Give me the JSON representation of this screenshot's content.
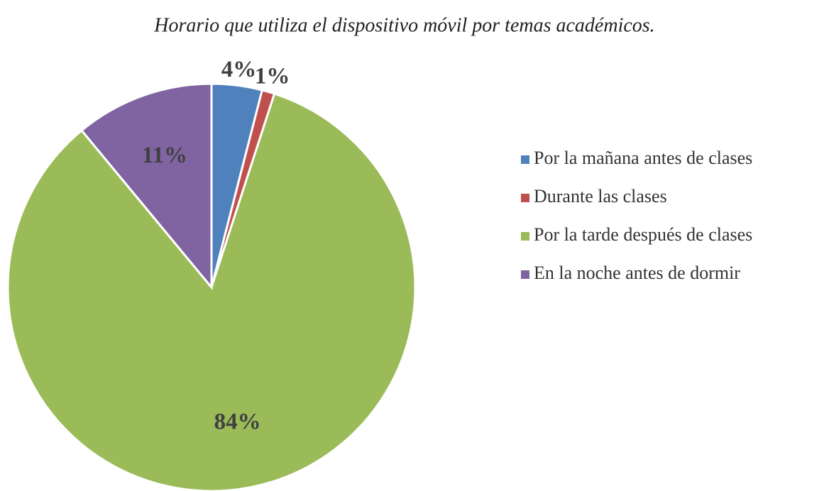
{
  "chart_data": {
    "type": "pie",
    "title": "Horario que utiliza el dispositivo móvil por temas académicos.",
    "categories": [
      "Por la mañana antes de clases",
      "Durante las clases",
      "Por la tarde después de clases",
      "En la noche antes de dormir"
    ],
    "values": [
      4,
      1,
      84,
      11
    ],
    "value_labels": [
      "4%",
      "1%",
      "84%",
      "11%"
    ],
    "colors": [
      "#4f81bd",
      "#c0504d",
      "#9bbb59",
      "#8064a2"
    ],
    "legend": "right"
  }
}
